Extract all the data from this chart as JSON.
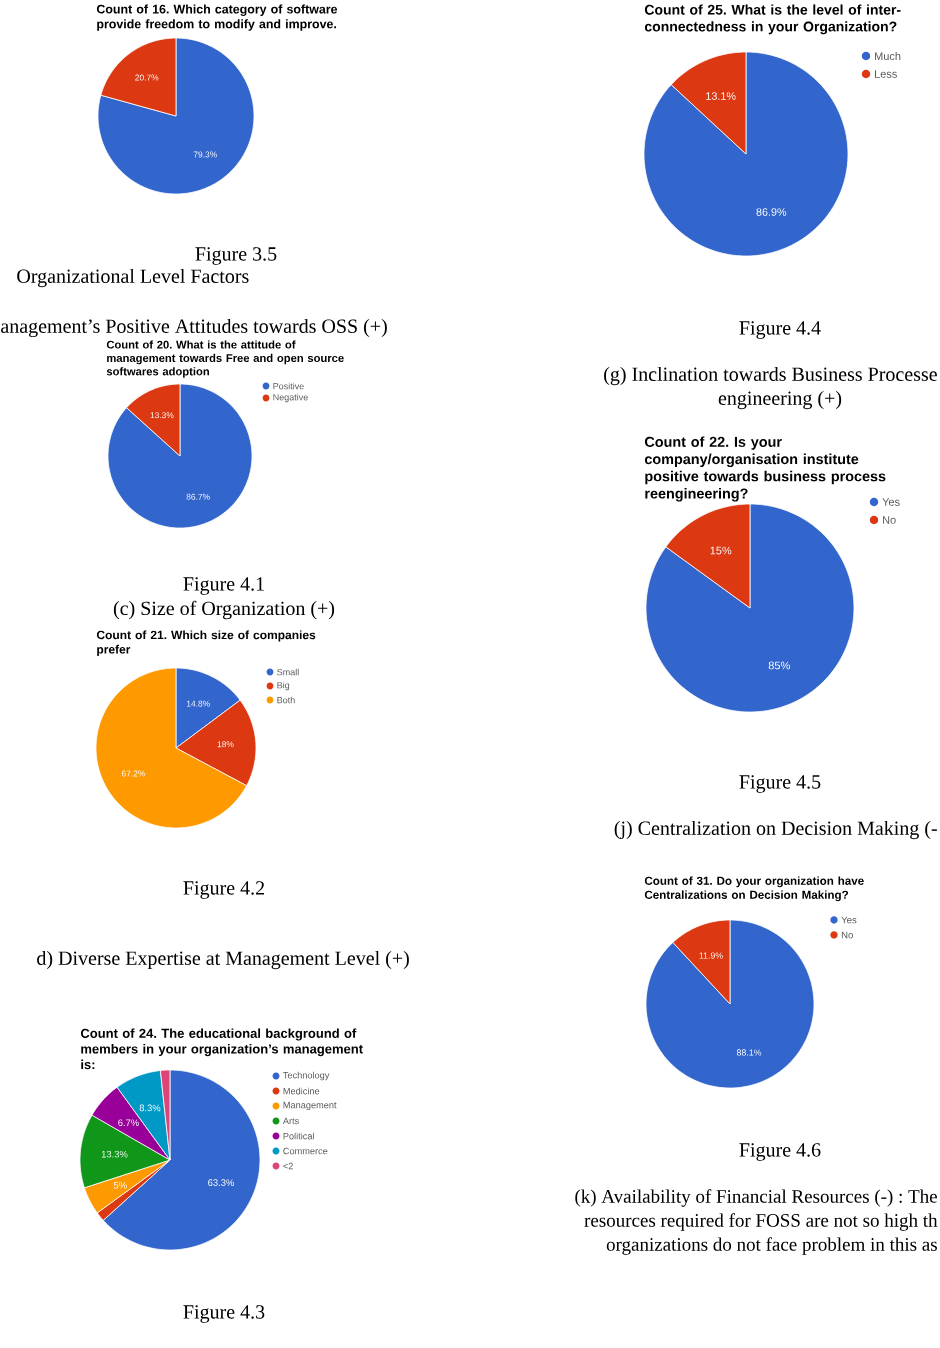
{
  "chart_data": [
    {
      "type": "pie",
      "title": "Count of 16. Which category of software provide freedom to modify and improve.",
      "categories": [
        null,
        null
      ],
      "values": [
        79.3,
        20.7
      ],
      "colors": [
        "#3366cc",
        "#dc3912"
      ],
      "value_labels": [
        "79.3%",
        "20.7%"
      ],
      "annotations": [
        "Figure 3.5",
        "Organizational Level Factors"
      ]
    },
    {
      "type": "pie",
      "title": "Count of 20. What is the attitude of management towards Free and open source softwares adoption",
      "categories": [
        "Positive",
        "Negative"
      ],
      "values": [
        86.7,
        13.3
      ],
      "colors": [
        "#3366cc",
        "#dc3912"
      ],
      "value_labels": [
        "86.7%",
        "13.3%"
      ],
      "legend": "top right",
      "annotations": [
        "anagement’s Positive Attitudes towards OSS (+)",
        "Figure 4.1",
        "(c) Size of Organization (+)"
      ]
    },
    {
      "type": "pie",
      "title": "Count of 21. Which size of companies prefer",
      "categories": [
        "Small",
        "Big",
        "Both"
      ],
      "values": [
        14.8,
        18,
        67.2
      ],
      "colors": [
        "#3366cc",
        "#dc3912",
        "#ff9900"
      ],
      "value_labels": [
        "14.8%",
        "18%",
        "67.2%"
      ],
      "legend": "top right",
      "annotations": [
        "Figure 4.2",
        "d) Diverse Expertise at Management Level (+)"
      ]
    },
    {
      "type": "pie",
      "title": "Count of 24. The educational background of members in your organization’s management is:",
      "categories": [
        "Technology",
        "Medicine",
        "Management",
        "Arts",
        "Political",
        "Commerce",
        "<2"
      ],
      "values": [
        63.3,
        1.7,
        5,
        13.3,
        6.7,
        8.3,
        1.7
      ],
      "colors": [
        "#3366cc",
        "#dc3912",
        "#ff9900",
        "#109618",
        "#990099",
        "#0099c6",
        "#dd4477"
      ],
      "value_labels": [
        "63.3%",
        null,
        "5%",
        "13.3%",
        "6.7%",
        "8.3%",
        null
      ],
      "legend": "top right",
      "annotations": [
        "Figure 4.3"
      ]
    },
    {
      "type": "pie",
      "title": "Count of 25. What is the level of inter-connectedness in your Organization?",
      "categories": [
        "Much",
        "Less"
      ],
      "values": [
        86.9,
        13.1
      ],
      "colors": [
        "#3366cc",
        "#dc3912"
      ],
      "value_labels": [
        "86.9%",
        "13.1%"
      ],
      "legend": "top right",
      "annotations": [
        "Figure 4.4",
        "(g) Inclination towards Business Processe",
        "engineering (+)"
      ]
    },
    {
      "type": "pie",
      "title": "Count of 22. Is your company/organisation institute positive towards business process reengineering?",
      "categories": [
        "Yes",
        "No"
      ],
      "values": [
        85,
        15
      ],
      "colors": [
        "#3366cc",
        "#dc3912"
      ],
      "value_labels": [
        "85%",
        "15%"
      ],
      "legend": "top right",
      "annotations": [
        "Figure 4.5",
        "(j) Centralization on Decision Making (-"
      ]
    },
    {
      "type": "pie",
      "title": "Count of 31. Do your organization have Centralizations on Decision Making?",
      "categories": [
        "Yes",
        "No"
      ],
      "values": [
        88.1,
        11.9
      ],
      "colors": [
        "#3366cc",
        "#dc3912"
      ],
      "value_labels": [
        "88.1%",
        "11.9%"
      ],
      "legend": "top right",
      "annotations": [
        "Figure 4.6",
        "(k) Availability of Financial Resources (-) : The",
        "resources required for FOSS are not so high th",
        "organizations do not face problem in this as"
      ]
    }
  ]
}
